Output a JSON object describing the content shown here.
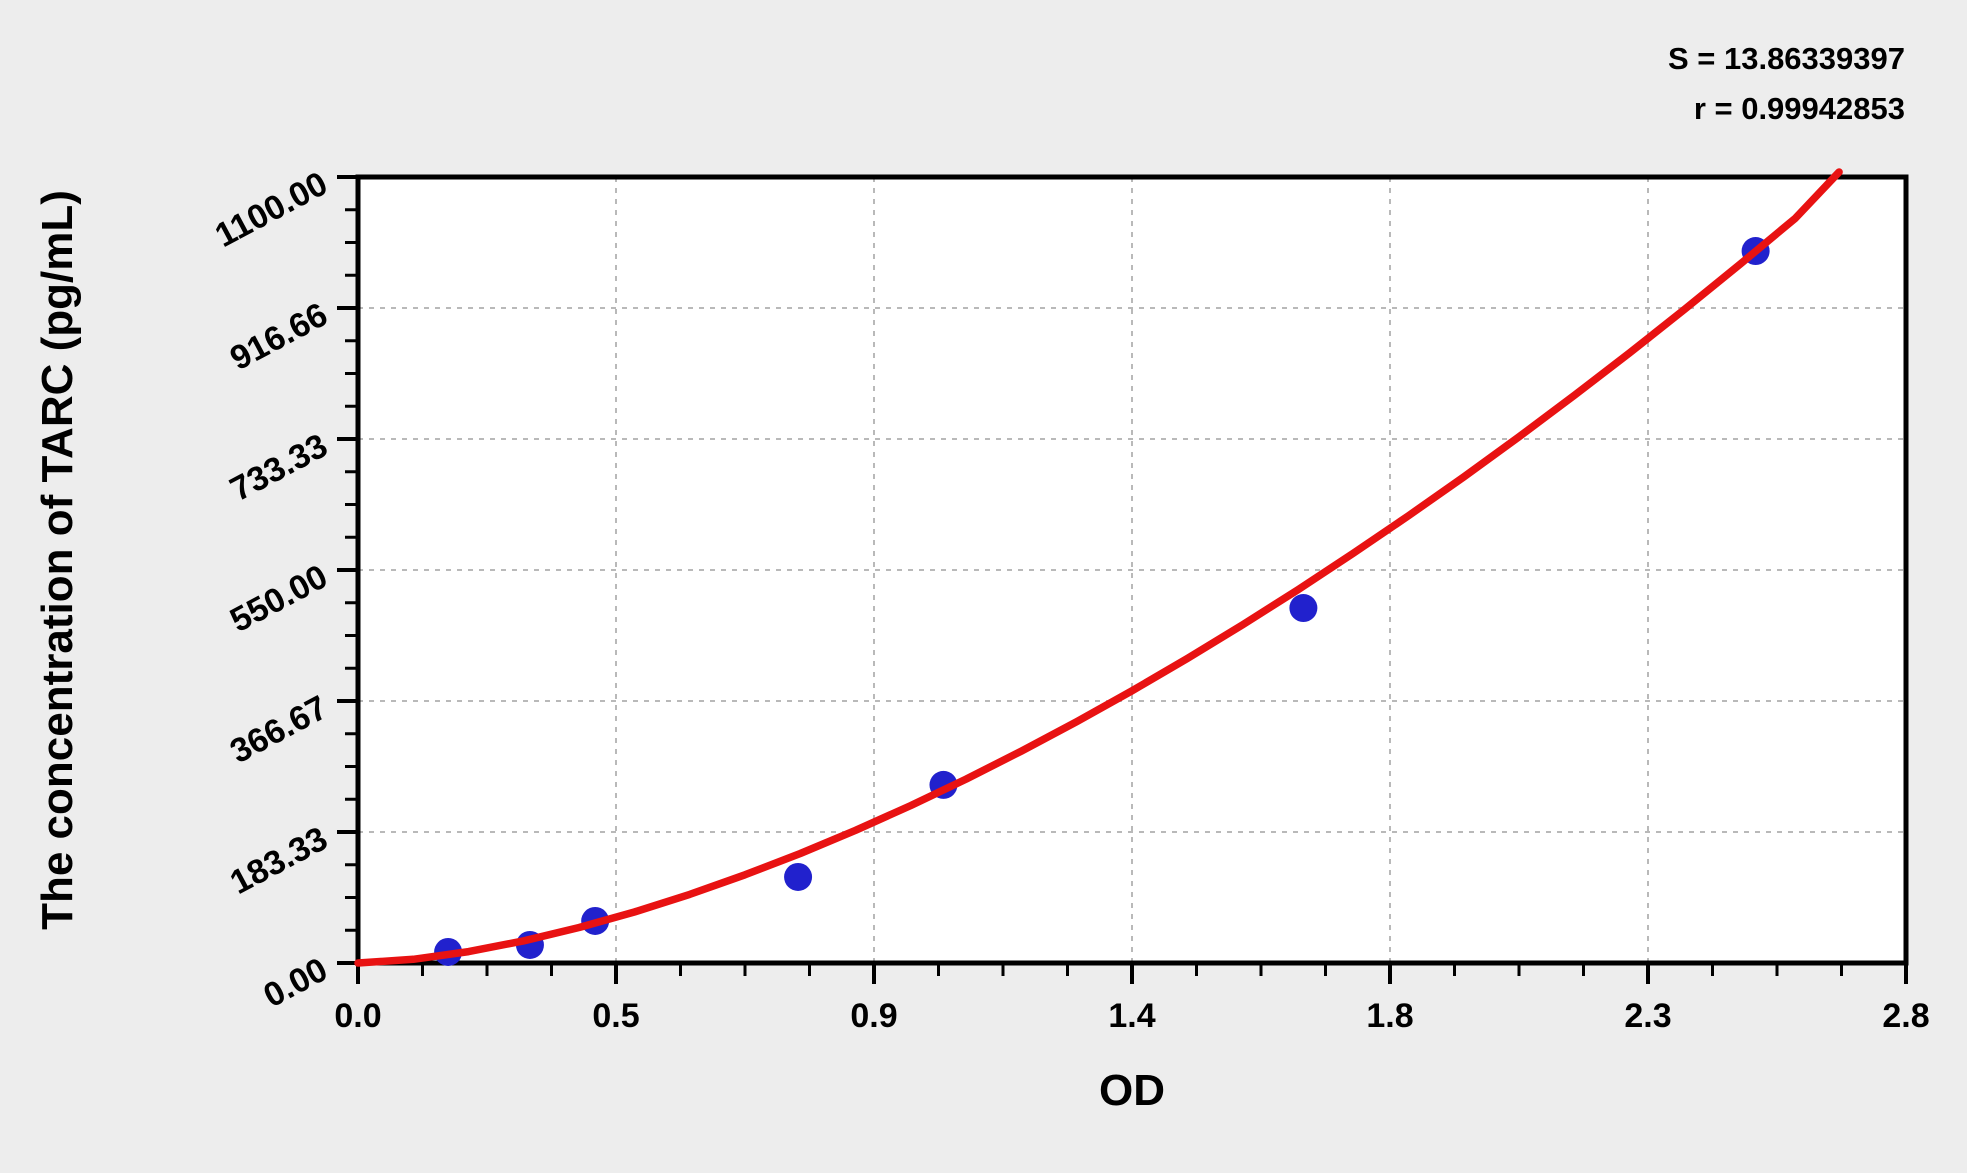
{
  "stats": {
    "s_line": "S = 13.86339397",
    "r_line": "r = 0.99942853"
  },
  "axes": {
    "x_title": "OD",
    "y_title": "The concentration of TARC (pg/mL)"
  },
  "colors": {
    "background": "#ededed",
    "plot_background": "#ffffff",
    "frame": "#000000",
    "grid": "#b9b9b9",
    "curve": "#e81212",
    "points": "#2121cd"
  },
  "chart_data": {
    "type": "scatter",
    "title": "",
    "xlabel": "OD",
    "ylabel": "The concentration of TARC (pg/mL)",
    "xlim": [
      0,
      2.8
    ],
    "ylim": [
      0,
      1100
    ],
    "x_tick_labels": [
      "0.0",
      "0.5",
      "0.9",
      "1.4",
      "1.8",
      "2.3",
      "2.8"
    ],
    "y_tick_labels": [
      "0.00",
      "183.33",
      "366.67",
      "550.00",
      "733.33",
      "916.66",
      "1100.00"
    ],
    "minor_ticks_per_interval": 3,
    "grid": "dashed-at-major-ticks",
    "legend_position": "none",
    "annotations": [
      "S = 13.86339397",
      "r = 0.99942853"
    ],
    "series": [
      {
        "name": "standard-points",
        "type": "scatter",
        "color": "#2121cd",
        "points": [
          [
            0.163,
            15.4
          ],
          [
            0.311,
            25.2
          ],
          [
            0.429,
            58.8
          ],
          [
            0.796,
            120.4
          ],
          [
            1.059,
            249.2
          ],
          [
            1.71,
            496.8
          ],
          [
            2.528,
            996.4
          ]
        ]
      },
      {
        "name": "fitted-curve",
        "type": "line",
        "color": "#e81212",
        "points": [
          [
            0,
            0
          ],
          [
            0.1,
            5.2
          ],
          [
            0.2,
            16.0
          ],
          [
            0.3,
            31.1
          ],
          [
            0.4,
            49.7
          ],
          [
            0.5,
            71.4
          ],
          [
            0.6,
            96.0
          ],
          [
            0.7,
            123.4
          ],
          [
            0.8,
            153.3
          ],
          [
            0.9,
            185.7
          ],
          [
            1.0,
            220.4
          ],
          [
            1.1,
            257.4
          ],
          [
            1.2,
            296.5
          ],
          [
            1.3,
            337.7
          ],
          [
            1.4,
            381.0
          ],
          [
            1.5,
            426.1
          ],
          [
            1.6,
            473.3
          ],
          [
            1.7,
            522.3
          ],
          [
            1.8,
            573.2
          ],
          [
            1.9,
            625.9
          ],
          [
            2.0,
            680.2
          ],
          [
            2.1,
            736.4
          ],
          [
            2.2,
            794.4
          ],
          [
            2.3,
            853.8
          ],
          [
            2.4,
            915.1
          ],
          [
            2.5,
            977.9
          ],
          [
            2.6,
            1042.3
          ],
          [
            2.679,
            1107.0
          ]
        ]
      }
    ]
  }
}
